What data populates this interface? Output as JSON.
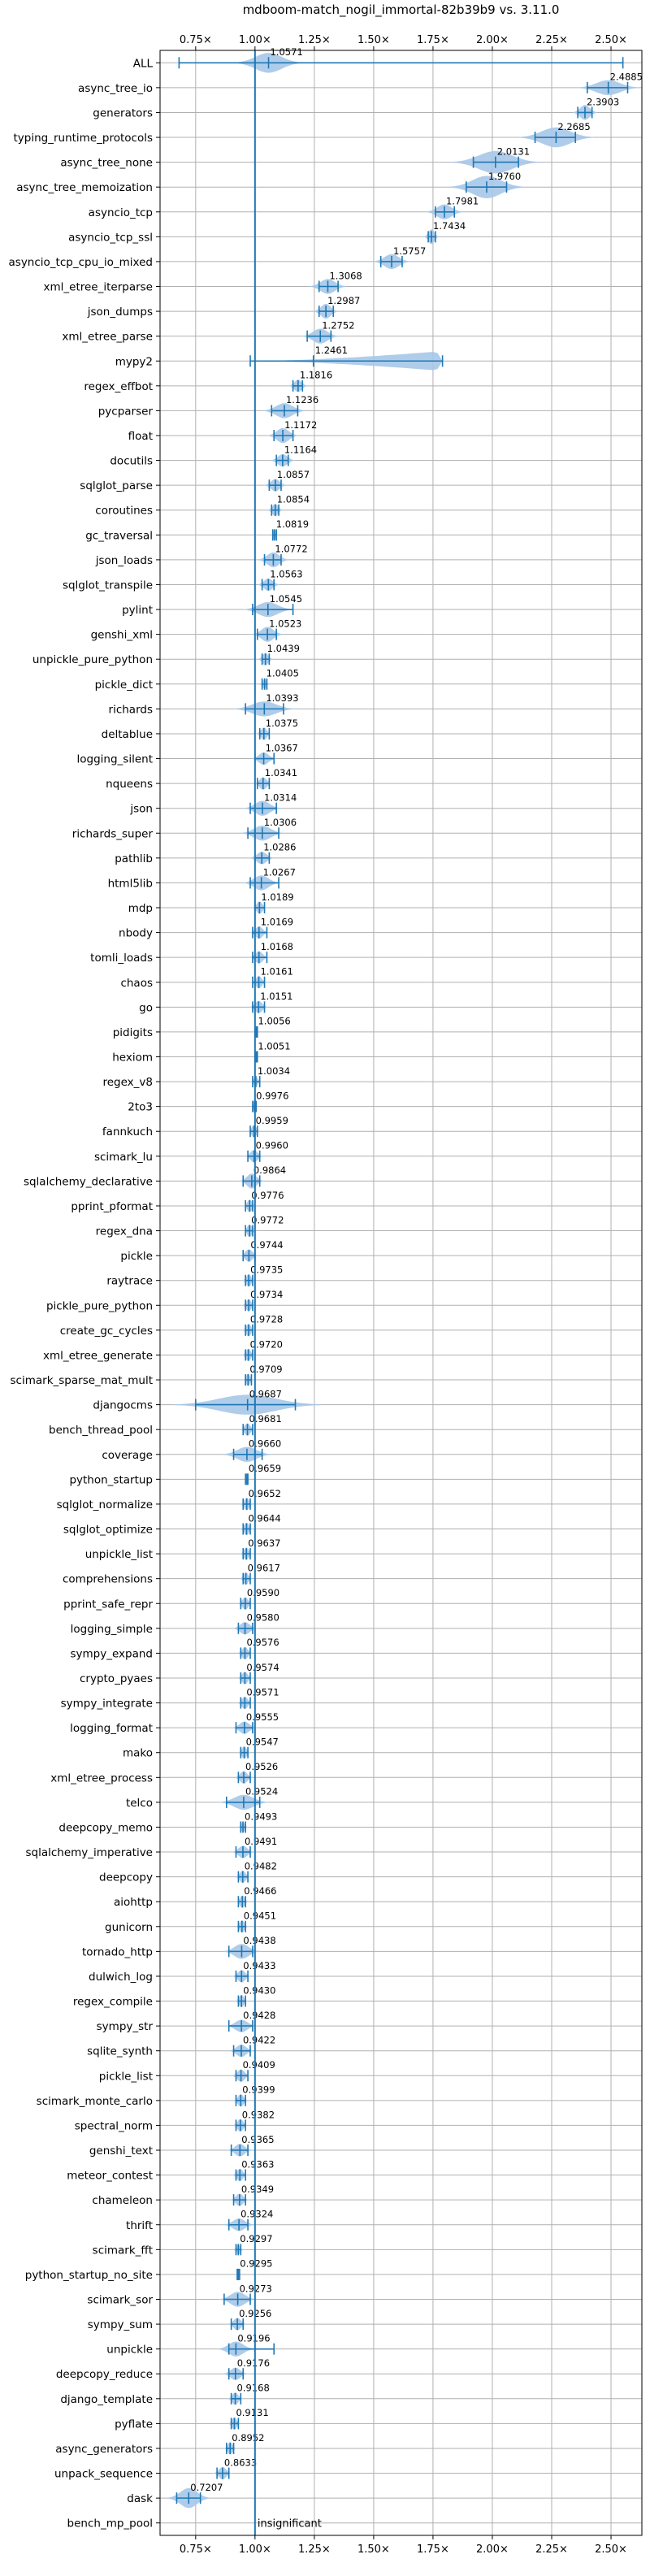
{
  "chart_data": {
    "type": "violin",
    "title": "mdboom-match_nogil_immortal-82b39b9 vs. 3.11.0",
    "xlabel": "",
    "ylabel": "",
    "xlim": [
      0.6,
      2.63
    ],
    "xticks": [
      0.75,
      1.0,
      1.25,
      1.5,
      1.75,
      2.0,
      2.25,
      2.5
    ],
    "xtick_labels": [
      "0.75×",
      "1.00×",
      "1.25×",
      "1.50×",
      "1.75×",
      "2.00×",
      "2.25×",
      "2.50×"
    ],
    "grid": true,
    "reference_line": 1.0,
    "colors": {
      "accent": "#1f77b4",
      "violin": "#a6c8e8",
      "grid": "#b0b0b0"
    },
    "benchmarks": [
      {
        "name": "ALL",
        "value": 1.0571,
        "label": "1.0571",
        "lo": 0.68,
        "hi": 2.55,
        "spread": 0.055,
        "width": 0.8
      },
      {
        "name": "async_tree_io",
        "value": 2.4885,
        "label": "2.4885",
        "lo": 2.4,
        "hi": 2.57,
        "spread": 0.05,
        "width": 0.6
      },
      {
        "name": "generators",
        "value": 2.3903,
        "label": "2.3903",
        "lo": 2.36,
        "hi": 2.42,
        "spread": 0.02,
        "width": 0.6
      },
      {
        "name": "typing_runtime_protocols",
        "value": 2.2685,
        "label": "2.2685",
        "lo": 2.18,
        "hi": 2.35,
        "spread": 0.06,
        "width": 0.8
      },
      {
        "name": "async_tree_none",
        "value": 2.0131,
        "label": "2.0131",
        "lo": 1.92,
        "hi": 2.11,
        "spread": 0.07,
        "width": 0.9
      },
      {
        "name": "async_tree_memoization",
        "value": 1.976,
        "label": "1.9760",
        "lo": 1.89,
        "hi": 2.06,
        "spread": 0.06,
        "width": 0.9
      },
      {
        "name": "asyncio_tcp",
        "value": 1.7981,
        "label": "1.7981",
        "lo": 1.76,
        "hi": 1.84,
        "spread": 0.03,
        "width": 0.6
      },
      {
        "name": "asyncio_tcp_ssl",
        "value": 1.7434,
        "label": "1.7434",
        "lo": 1.73,
        "hi": 1.76,
        "spread": 0.012,
        "width": 0.6
      },
      {
        "name": "asyncio_tcp_cpu_io_mixed",
        "value": 1.5757,
        "label": "1.5757",
        "lo": 1.53,
        "hi": 1.62,
        "spread": 0.03,
        "width": 0.6
      },
      {
        "name": "xml_etree_iterparse",
        "value": 1.3068,
        "label": "1.3068",
        "lo": 1.27,
        "hi": 1.35,
        "spread": 0.03,
        "width": 0.6
      },
      {
        "name": "json_dumps",
        "value": 1.2987,
        "label": "1.2987",
        "lo": 1.27,
        "hi": 1.33,
        "spread": 0.02,
        "width": 0.6
      },
      {
        "name": "xml_etree_parse",
        "value": 1.2752,
        "label": "1.2752",
        "lo": 1.22,
        "hi": 1.32,
        "spread": 0.03,
        "width": 0.6
      },
      {
        "name": "mypy2",
        "value": 1.2461,
        "label": "1.2461",
        "lo": 0.98,
        "hi": 1.79,
        "spread": 0.4,
        "width": 0.8,
        "shape": "wedge"
      },
      {
        "name": "regex_effbot",
        "value": 1.1816,
        "label": "1.1816",
        "lo": 1.16,
        "hi": 1.2,
        "spread": 0.015,
        "width": 0.5
      },
      {
        "name": "pycparser",
        "value": 1.1236,
        "label": "1.1236",
        "lo": 1.07,
        "hi": 1.18,
        "spread": 0.035,
        "width": 0.6
      },
      {
        "name": "float",
        "value": 1.1172,
        "label": "1.1172",
        "lo": 1.08,
        "hi": 1.16,
        "spread": 0.025,
        "width": 0.6
      },
      {
        "name": "docutils",
        "value": 1.1164,
        "label": "1.1164",
        "lo": 1.09,
        "hi": 1.14,
        "spread": 0.02,
        "width": 0.5
      },
      {
        "name": "sqlglot_parse",
        "value": 1.0857,
        "label": "1.0857",
        "lo": 1.06,
        "hi": 1.11,
        "spread": 0.018,
        "width": 0.5
      },
      {
        "name": "coroutines",
        "value": 1.0854,
        "label": "1.0854",
        "lo": 1.07,
        "hi": 1.1,
        "spread": 0.012,
        "width": 0.5
      },
      {
        "name": "gc_traversal",
        "value": 1.0819,
        "label": "1.0819",
        "lo": 1.075,
        "hi": 1.09,
        "spread": 0.006,
        "width": 0.4
      },
      {
        "name": "json_loads",
        "value": 1.0772,
        "label": "1.0772",
        "lo": 1.04,
        "hi": 1.11,
        "spread": 0.025,
        "width": 0.6
      },
      {
        "name": "sqlglot_transpile",
        "value": 1.0563,
        "label": "1.0563",
        "lo": 1.03,
        "hi": 1.08,
        "spread": 0.018,
        "width": 0.5
      },
      {
        "name": "pylint",
        "value": 1.0545,
        "label": "1.0545",
        "lo": 0.99,
        "hi": 1.16,
        "spread": 0.04,
        "width": 0.6
      },
      {
        "name": "genshi_xml",
        "value": 1.0523,
        "label": "1.0523",
        "lo": 1.01,
        "hi": 1.09,
        "spread": 0.025,
        "width": 0.6
      },
      {
        "name": "unpickle_pure_python",
        "value": 1.0439,
        "label": "1.0439",
        "lo": 1.03,
        "hi": 1.06,
        "spread": 0.012,
        "width": 0.5
      },
      {
        "name": "pickle_dict",
        "value": 1.0405,
        "label": "1.0405",
        "lo": 1.03,
        "hi": 1.05,
        "spread": 0.008,
        "width": 0.4
      },
      {
        "name": "richards",
        "value": 1.0393,
        "label": "1.0393",
        "lo": 0.96,
        "hi": 1.12,
        "spread": 0.05,
        "width": 0.6
      },
      {
        "name": "deltablue",
        "value": 1.0375,
        "label": "1.0375",
        "lo": 1.02,
        "hi": 1.06,
        "spread": 0.012,
        "width": 0.5
      },
      {
        "name": "logging_silent",
        "value": 1.0367,
        "label": "1.0367",
        "lo": 1.0,
        "hi": 1.08,
        "spread": 0.02,
        "width": 0.5
      },
      {
        "name": "nqueens",
        "value": 1.0341,
        "label": "1.0341",
        "lo": 1.01,
        "hi": 1.06,
        "spread": 0.015,
        "width": 0.5
      },
      {
        "name": "json",
        "value": 1.0314,
        "label": "1.0314",
        "lo": 0.98,
        "hi": 1.09,
        "spread": 0.03,
        "width": 0.6
      },
      {
        "name": "richards_super",
        "value": 1.0306,
        "label": "1.0306",
        "lo": 0.97,
        "hi": 1.1,
        "spread": 0.035,
        "width": 0.6
      },
      {
        "name": "pathlib",
        "value": 1.0286,
        "label": "1.0286",
        "lo": 1.0,
        "hi": 1.06,
        "spread": 0.02,
        "width": 0.5
      },
      {
        "name": "html5lib",
        "value": 1.0267,
        "label": "1.0267",
        "lo": 0.98,
        "hi": 1.1,
        "spread": 0.03,
        "width": 0.6
      },
      {
        "name": "mdp",
        "value": 1.0189,
        "label": "1.0189",
        "lo": 1.0,
        "hi": 1.04,
        "spread": 0.012,
        "width": 0.5
      },
      {
        "name": "nbody",
        "value": 1.0169,
        "label": "1.0169",
        "lo": 0.99,
        "hi": 1.05,
        "spread": 0.015,
        "width": 0.5
      },
      {
        "name": "tomli_loads",
        "value": 1.0168,
        "label": "1.0168",
        "lo": 0.99,
        "hi": 1.05,
        "spread": 0.015,
        "width": 0.5
      },
      {
        "name": "chaos",
        "value": 1.0161,
        "label": "1.0161",
        "lo": 0.99,
        "hi": 1.04,
        "spread": 0.012,
        "width": 0.5
      },
      {
        "name": "go",
        "value": 1.0151,
        "label": "1.0151",
        "lo": 0.99,
        "hi": 1.04,
        "spread": 0.015,
        "width": 0.5
      },
      {
        "name": "pidigits",
        "value": 1.0056,
        "label": "1.0056",
        "lo": 1.0,
        "hi": 1.01,
        "spread": 0.004,
        "width": 0.4
      },
      {
        "name": "hexiom",
        "value": 1.0051,
        "label": "1.0051",
        "lo": 1.0,
        "hi": 1.01,
        "spread": 0.004,
        "width": 0.4
      },
      {
        "name": "regex_v8",
        "value": 1.0034,
        "label": "1.0034",
        "lo": 0.99,
        "hi": 1.02,
        "spread": 0.008,
        "width": 0.4
      },
      {
        "name": "2to3",
        "value": 0.9976,
        "label": "0.9976",
        "lo": 0.99,
        "hi": 1.005,
        "spread": 0.005,
        "width": 0.4
      },
      {
        "name": "fannkuch",
        "value": 0.9959,
        "label": "0.9959",
        "lo": 0.98,
        "hi": 1.01,
        "spread": 0.01,
        "width": 0.5
      },
      {
        "name": "scimark_lu",
        "value": 0.996,
        "label": "0.9960",
        "lo": 0.97,
        "hi": 1.02,
        "spread": 0.015,
        "width": 0.5
      },
      {
        "name": "sqlalchemy_declarative",
        "value": 0.9864,
        "label": "0.9864",
        "lo": 0.95,
        "hi": 1.02,
        "spread": 0.02,
        "width": 0.6
      },
      {
        "name": "pprint_pformat",
        "value": 0.9776,
        "label": "0.9776",
        "lo": 0.96,
        "hi": 0.99,
        "spread": 0.01,
        "width": 0.5
      },
      {
        "name": "regex_dna",
        "value": 0.9772,
        "label": "0.9772",
        "lo": 0.96,
        "hi": 0.99,
        "spread": 0.01,
        "width": 0.5
      },
      {
        "name": "pickle",
        "value": 0.9744,
        "label": "0.9744",
        "lo": 0.95,
        "hi": 1.0,
        "spread": 0.015,
        "width": 0.5
      },
      {
        "name": "raytrace",
        "value": 0.9735,
        "label": "0.9735",
        "lo": 0.96,
        "hi": 0.99,
        "spread": 0.01,
        "width": 0.5
      },
      {
        "name": "pickle_pure_python",
        "value": 0.9734,
        "label": "0.9734",
        "lo": 0.96,
        "hi": 0.99,
        "spread": 0.01,
        "width": 0.5
      },
      {
        "name": "create_gc_cycles",
        "value": 0.9728,
        "label": "0.9728",
        "lo": 0.96,
        "hi": 0.99,
        "spread": 0.01,
        "width": 0.5
      },
      {
        "name": "xml_etree_generate",
        "value": 0.972,
        "label": "0.9720",
        "lo": 0.96,
        "hi": 0.99,
        "spread": 0.01,
        "width": 0.5
      },
      {
        "name": "scimark_sparse_mat_mult",
        "value": 0.9709,
        "label": "0.9709",
        "lo": 0.96,
        "hi": 0.985,
        "spread": 0.008,
        "width": 0.5
      },
      {
        "name": "djangocms",
        "value": 0.9687,
        "label": "0.9687",
        "lo": 0.75,
        "hi": 1.17,
        "spread": 0.12,
        "width": 0.8
      },
      {
        "name": "bench_thread_pool",
        "value": 0.9681,
        "label": "0.9681",
        "lo": 0.95,
        "hi": 0.99,
        "spread": 0.012,
        "width": 0.5
      },
      {
        "name": "coverage",
        "value": 0.966,
        "label": "0.9660",
        "lo": 0.91,
        "hi": 1.03,
        "spread": 0.04,
        "width": 0.6
      },
      {
        "name": "python_startup",
        "value": 0.9659,
        "label": "0.9659",
        "lo": 0.96,
        "hi": 0.97,
        "spread": 0.004,
        "width": 0.4
      },
      {
        "name": "sqlglot_normalize",
        "value": 0.9652,
        "label": "0.9652",
        "lo": 0.95,
        "hi": 0.98,
        "spread": 0.01,
        "width": 0.5
      },
      {
        "name": "sqlglot_optimize",
        "value": 0.9644,
        "label": "0.9644",
        "lo": 0.95,
        "hi": 0.98,
        "spread": 0.01,
        "width": 0.5
      },
      {
        "name": "unpickle_list",
        "value": 0.9637,
        "label": "0.9637",
        "lo": 0.95,
        "hi": 0.98,
        "spread": 0.01,
        "width": 0.5
      },
      {
        "name": "comprehensions",
        "value": 0.9617,
        "label": "0.9617",
        "lo": 0.95,
        "hi": 0.98,
        "spread": 0.01,
        "width": 0.5
      },
      {
        "name": "pprint_safe_repr",
        "value": 0.959,
        "label": "0.9590",
        "lo": 0.94,
        "hi": 0.98,
        "spread": 0.012,
        "width": 0.5
      },
      {
        "name": "logging_simple",
        "value": 0.958,
        "label": "0.9580",
        "lo": 0.93,
        "hi": 0.99,
        "spread": 0.02,
        "width": 0.5
      },
      {
        "name": "sympy_expand",
        "value": 0.9576,
        "label": "0.9576",
        "lo": 0.94,
        "hi": 0.98,
        "spread": 0.012,
        "width": 0.5
      },
      {
        "name": "crypto_pyaes",
        "value": 0.9574,
        "label": "0.9574",
        "lo": 0.94,
        "hi": 0.98,
        "spread": 0.012,
        "width": 0.5
      },
      {
        "name": "sympy_integrate",
        "value": 0.9571,
        "label": "0.9571",
        "lo": 0.94,
        "hi": 0.98,
        "spread": 0.012,
        "width": 0.5
      },
      {
        "name": "logging_format",
        "value": 0.9555,
        "label": "0.9555",
        "lo": 0.92,
        "hi": 0.99,
        "spread": 0.02,
        "width": 0.5
      },
      {
        "name": "mako",
        "value": 0.9547,
        "label": "0.9547",
        "lo": 0.94,
        "hi": 0.97,
        "spread": 0.01,
        "width": 0.5
      },
      {
        "name": "xml_etree_process",
        "value": 0.9526,
        "label": "0.9526",
        "lo": 0.93,
        "hi": 0.98,
        "spread": 0.015,
        "width": 0.5
      },
      {
        "name": "telco",
        "value": 0.9524,
        "label": "0.9524",
        "lo": 0.88,
        "hi": 1.02,
        "spread": 0.04,
        "width": 0.6
      },
      {
        "name": "deepcopy_memo",
        "value": 0.9493,
        "label": "0.9493",
        "lo": 0.94,
        "hi": 0.96,
        "spread": 0.008,
        "width": 0.4
      },
      {
        "name": "sqlalchemy_imperative",
        "value": 0.9491,
        "label": "0.9491",
        "lo": 0.92,
        "hi": 0.98,
        "spread": 0.018,
        "width": 0.5
      },
      {
        "name": "deepcopy",
        "value": 0.9482,
        "label": "0.9482",
        "lo": 0.93,
        "hi": 0.97,
        "spread": 0.012,
        "width": 0.5
      },
      {
        "name": "aiohttp",
        "value": 0.9466,
        "label": "0.9466",
        "lo": 0.93,
        "hi": 0.96,
        "spread": 0.01,
        "width": 0.5
      },
      {
        "name": "gunicorn",
        "value": 0.9451,
        "label": "0.9451",
        "lo": 0.93,
        "hi": 0.96,
        "spread": 0.01,
        "width": 0.5
      },
      {
        "name": "tornado_http",
        "value": 0.9438,
        "label": "0.9438",
        "lo": 0.89,
        "hi": 0.99,
        "spread": 0.03,
        "width": 0.6
      },
      {
        "name": "dulwich_log",
        "value": 0.9433,
        "label": "0.9433",
        "lo": 0.92,
        "hi": 0.97,
        "spread": 0.015,
        "width": 0.5
      },
      {
        "name": "regex_compile",
        "value": 0.943,
        "label": "0.9430",
        "lo": 0.93,
        "hi": 0.96,
        "spread": 0.01,
        "width": 0.5
      },
      {
        "name": "sympy_str",
        "value": 0.9428,
        "label": "0.9428",
        "lo": 0.89,
        "hi": 0.99,
        "spread": 0.025,
        "width": 0.5
      },
      {
        "name": "sqlite_synth",
        "value": 0.9422,
        "label": "0.9422",
        "lo": 0.91,
        "hi": 0.98,
        "spread": 0.02,
        "width": 0.5
      },
      {
        "name": "pickle_list",
        "value": 0.9409,
        "label": "0.9409",
        "lo": 0.92,
        "hi": 0.97,
        "spread": 0.015,
        "width": 0.5
      },
      {
        "name": "scimark_monte_carlo",
        "value": 0.9399,
        "label": "0.9399",
        "lo": 0.92,
        "hi": 0.96,
        "spread": 0.012,
        "width": 0.5
      },
      {
        "name": "spectral_norm",
        "value": 0.9382,
        "label": "0.9382",
        "lo": 0.92,
        "hi": 0.96,
        "spread": 0.012,
        "width": 0.5
      },
      {
        "name": "genshi_text",
        "value": 0.9365,
        "label": "0.9365",
        "lo": 0.9,
        "hi": 0.97,
        "spread": 0.02,
        "width": 0.5
      },
      {
        "name": "meteor_contest",
        "value": 0.9363,
        "label": "0.9363",
        "lo": 0.92,
        "hi": 0.96,
        "spread": 0.012,
        "width": 0.5
      },
      {
        "name": "chameleon",
        "value": 0.9349,
        "label": "0.9349",
        "lo": 0.91,
        "hi": 0.96,
        "spread": 0.015,
        "width": 0.5
      },
      {
        "name": "thrift",
        "value": 0.9324,
        "label": "0.9324",
        "lo": 0.89,
        "hi": 0.97,
        "spread": 0.025,
        "width": 0.5
      },
      {
        "name": "scimark_fft",
        "value": 0.9297,
        "label": "0.9297",
        "lo": 0.92,
        "hi": 0.94,
        "spread": 0.008,
        "width": 0.4
      },
      {
        "name": "python_startup_no_site",
        "value": 0.9295,
        "label": "0.9295",
        "lo": 0.925,
        "hi": 0.935,
        "spread": 0.003,
        "width": 0.4
      },
      {
        "name": "scimark_sor",
        "value": 0.9273,
        "label": "0.9273",
        "lo": 0.87,
        "hi": 0.98,
        "spread": 0.03,
        "width": 0.6
      },
      {
        "name": "sympy_sum",
        "value": 0.9256,
        "label": "0.9256",
        "lo": 0.9,
        "hi": 0.95,
        "spread": 0.015,
        "width": 0.5
      },
      {
        "name": "unpickle",
        "value": 0.9196,
        "label": "0.9196",
        "lo": 0.89,
        "hi": 1.08,
        "spread": 0.03,
        "width": 0.6
      },
      {
        "name": "deepcopy_reduce",
        "value": 0.9176,
        "label": "0.9176",
        "lo": 0.89,
        "hi": 0.95,
        "spread": 0.02,
        "width": 0.5
      },
      {
        "name": "django_template",
        "value": 0.9168,
        "label": "0.9168",
        "lo": 0.9,
        "hi": 0.94,
        "spread": 0.012,
        "width": 0.5
      },
      {
        "name": "pyflate",
        "value": 0.9131,
        "label": "0.9131",
        "lo": 0.9,
        "hi": 0.93,
        "spread": 0.01,
        "width": 0.5
      },
      {
        "name": "async_generators",
        "value": 0.8952,
        "label": "0.8952",
        "lo": 0.88,
        "hi": 0.91,
        "spread": 0.01,
        "width": 0.5
      },
      {
        "name": "unpack_sequence",
        "value": 0.8633,
        "label": "0.8633",
        "lo": 0.84,
        "hi": 0.89,
        "spread": 0.015,
        "width": 0.5
      },
      {
        "name": "dask",
        "value": 0.7207,
        "label": "0.7207",
        "lo": 0.67,
        "hi": 0.77,
        "spread": 0.035,
        "width": 0.8
      },
      {
        "name": "bench_mp_pool",
        "value": 1.0,
        "label": "insignificant",
        "lo": 1.0,
        "hi": 1.0,
        "spread": 0,
        "width": 0,
        "insignificant": true
      }
    ]
  }
}
